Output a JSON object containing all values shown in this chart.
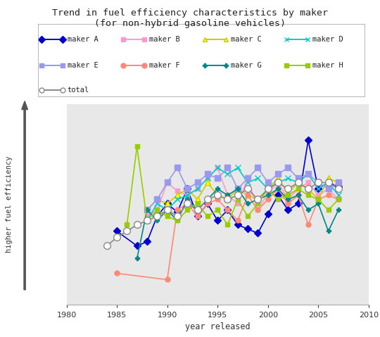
{
  "title": "Trend in fuel efficiency characteristics by maker\n(for non-hybrid gasoline vehicles)",
  "xlabel": "year released",
  "ylabel": "higher fuel efficiency",
  "xlim": [
    1980,
    2010
  ],
  "ylim": [
    2.0,
    11.5
  ],
  "xticks": [
    1980,
    1985,
    1990,
    1995,
    2000,
    2005,
    2010
  ],
  "series": {
    "maker A": {
      "color": "#0000cc",
      "marker": "D",
      "ms": 5,
      "mfc": "#0000cc",
      "lw": 1.2,
      "x": [
        1985,
        1987,
        1988,
        1989,
        1990,
        1991,
        1992,
        1993,
        1994,
        1995,
        1996,
        1997,
        1998,
        1999,
        2000,
        2001,
        2002,
        2003,
        2004,
        2005,
        2006,
        2007
      ],
      "y": [
        5.5,
        4.8,
        5.0,
        6.2,
        6.8,
        6.4,
        7.5,
        6.2,
        6.8,
        6.0,
        6.5,
        5.8,
        5.6,
        5.4,
        6.3,
        7.2,
        6.5,
        6.8,
        9.8,
        7.5,
        7.8,
        7.6
      ]
    },
    "maker B": {
      "color": "#ff99cc",
      "marker": "s",
      "ms": 5,
      "mfc": "#ff99cc",
      "lw": 1.2,
      "x": [
        1988,
        1989,
        1990,
        1991,
        1992,
        1993,
        1994,
        1995,
        1996,
        1997,
        1998,
        1999,
        2000,
        2001,
        2002,
        2003,
        2004,
        2005,
        2006,
        2007
      ],
      "y": [
        6.2,
        6.5,
        7.8,
        7.4,
        7.2,
        7.5,
        8.0,
        8.5,
        7.2,
        6.8,
        8.0,
        6.5,
        7.3,
        7.8,
        7.0,
        7.5,
        7.8,
        7.2,
        7.5,
        7.0
      ]
    },
    "maker C": {
      "color": "#cccc00",
      "marker": "^",
      "ms": 6,
      "mfc": "#ffff00",
      "lw": 1.2,
      "x": [
        1988,
        1989,
        1990,
        1991,
        1992,
        1993,
        1994,
        1995,
        1996,
        1997,
        1998,
        1999,
        2000,
        2001,
        2002,
        2003,
        2004,
        2005,
        2006,
        2007
      ],
      "y": [
        6.5,
        7.0,
        6.8,
        7.2,
        7.5,
        7.0,
        7.8,
        7.2,
        7.0,
        7.5,
        7.2,
        7.0,
        7.5,
        8.0,
        7.3,
        7.8,
        7.5,
        7.0,
        8.0,
        7.8
      ]
    },
    "maker D": {
      "color": "#00cccc",
      "marker": "x",
      "ms": 6,
      "mfc": "#00cccc",
      "lw": 1.2,
      "x": [
        1988,
        1989,
        1990,
        1991,
        1992,
        1993,
        1994,
        1995,
        1996,
        1997,
        1998,
        1999,
        2000,
        2001,
        2002,
        2003,
        2004,
        2005,
        2006,
        2007
      ],
      "y": [
        6.0,
        6.8,
        6.5,
        7.0,
        7.2,
        7.5,
        8.0,
        8.5,
        8.2,
        8.5,
        7.8,
        8.0,
        7.5,
        7.8,
        8.0,
        7.8,
        8.2,
        7.5,
        7.8,
        7.2
      ]
    },
    "maker E": {
      "color": "#9999ee",
      "marker": "s",
      "ms": 6,
      "mfc": "#9999ee",
      "lw": 1.2,
      "x": [
        1988,
        1989,
        1990,
        1991,
        1992,
        1993,
        1994,
        1995,
        1996,
        1997,
        1998,
        1999,
        2000,
        2001,
        2002,
        2003,
        2004,
        2005,
        2006,
        2007
      ],
      "y": [
        6.5,
        7.0,
        7.8,
        8.5,
        7.5,
        7.8,
        8.2,
        8.0,
        8.5,
        7.5,
        8.0,
        8.5,
        7.8,
        8.2,
        8.5,
        8.0,
        8.2,
        7.8,
        7.5,
        7.8
      ]
    },
    "maker F": {
      "color": "#ff8877",
      "marker": "o",
      "ms": 5,
      "mfc": "#ff8877",
      "lw": 1.2,
      "x": [
        1985,
        1990,
        1991,
        1992,
        1993,
        1994,
        1995,
        1996,
        1997,
        1998,
        1999,
        2000,
        2001,
        2002,
        2003,
        2004,
        2005,
        2006,
        2007
      ],
      "y": [
        3.5,
        3.2,
        6.5,
        6.8,
        6.2,
        6.8,
        7.0,
        6.5,
        6.0,
        7.2,
        6.5,
        7.0,
        7.5,
        6.8,
        7.2,
        5.8,
        7.0,
        7.2,
        7.0
      ]
    },
    "maker G": {
      "color": "#008888",
      "marker": "P",
      "ms": 5,
      "mfc": "#008888",
      "lw": 1.2,
      "x": [
        1987,
        1988,
        1989,
        1990,
        1991,
        1992,
        1993,
        1994,
        1995,
        1996,
        1997,
        1998,
        1999,
        2000,
        2001,
        2002,
        2003,
        2004,
        2005,
        2006,
        2007
      ],
      "y": [
        4.2,
        6.5,
        6.0,
        6.5,
        6.0,
        7.0,
        6.5,
        7.0,
        7.5,
        7.2,
        7.5,
        6.8,
        7.0,
        7.2,
        7.5,
        7.0,
        7.2,
        6.5,
        6.8,
        5.5,
        6.5
      ]
    },
    "maker H": {
      "color": "#99cc00",
      "marker": "s",
      "ms": 5,
      "mfc": "#99cc00",
      "lw": 1.2,
      "x": [
        1986,
        1987,
        1988,
        1989,
        1990,
        1991,
        1992,
        1993,
        1994,
        1995,
        1996,
        1997,
        1998,
        1999,
        2000,
        2001,
        2002,
        2003,
        2004,
        2005,
        2006,
        2007
      ],
      "y": [
        5.8,
        9.5,
        6.0,
        6.5,
        6.2,
        6.0,
        6.5,
        6.8,
        6.2,
        6.5,
        5.8,
        7.0,
        6.2,
        6.8,
        7.5,
        7.0,
        7.2,
        7.5,
        7.2,
        7.0,
        6.5,
        7.0
      ]
    },
    "total": {
      "color": "#888888",
      "marker": "o",
      "ms": 7,
      "mfc": "#ffffff",
      "lw": 1.2,
      "x": [
        1984,
        1985,
        1986,
        1987,
        1988,
        1989,
        1990,
        1991,
        1992,
        1993,
        1994,
        1995,
        1996,
        1997,
        1998,
        1999,
        2000,
        2001,
        2002,
        2003,
        2004,
        2005,
        2006,
        2007
      ],
      "y": [
        4.8,
        5.2,
        5.5,
        5.8,
        6.0,
        6.2,
        6.5,
        6.2,
        6.8,
        6.5,
        7.0,
        7.2,
        7.0,
        7.2,
        7.5,
        7.0,
        7.5,
        7.8,
        7.5,
        7.8,
        7.5,
        7.8,
        7.8,
        7.5
      ]
    }
  },
  "legend_entries": [
    [
      "maker A",
      "#0000cc",
      "D",
      "#0000cc"
    ],
    [
      "maker B",
      "#ff99cc",
      "s",
      "#ff99cc"
    ],
    [
      "maker C",
      "#cccc00",
      "^",
      "#ffff00"
    ],
    [
      "maker D",
      "#00cccc",
      "x",
      "#00cccc"
    ],
    [
      "maker E",
      "#9999ee",
      "s",
      "#9999ee"
    ],
    [
      "maker F",
      "#ff8877",
      "o",
      "#ff8877"
    ],
    [
      "maker G",
      "#008888",
      "P",
      "#008888"
    ],
    [
      "maker H",
      "#99cc00",
      "s",
      "#99cc00"
    ],
    [
      "total",
      "#888888",
      "o",
      "#ffffff"
    ]
  ]
}
